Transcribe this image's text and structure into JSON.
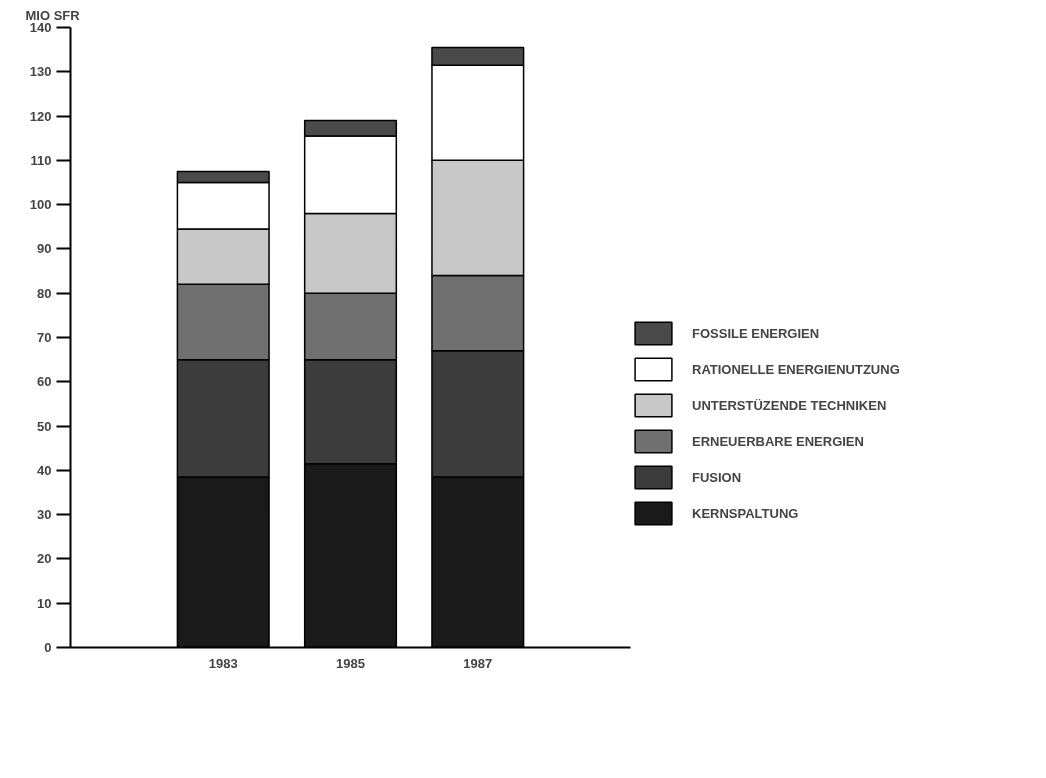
{
  "chart_data": {
    "type": "bar",
    "stacked": true,
    "ylabel": "MIO SFR",
    "categories": [
      "1983",
      "1985",
      "1987"
    ],
    "series": [
      {
        "name": "KERNSPALTUNG",
        "color": "#1a1a1a",
        "values": [
          38.5,
          41.5,
          38.5
        ]
      },
      {
        "name": "FUSION",
        "color": "#3c3c3c",
        "values": [
          26.5,
          23.5,
          28.5
        ]
      },
      {
        "name": "ERNEUERBARE ENERGIEN",
        "color": "#707070",
        "values": [
          17,
          15,
          17
        ]
      },
      {
        "name": "UNTERSTÜZENDE TECHNIKEN",
        "color": "#c8c8c8",
        "values": [
          12.5,
          18,
          26
        ]
      },
      {
        "name": "RATIONELLE ENERGIENUTZUNG",
        "color": "#ffffff",
        "values": [
          10.5,
          17.5,
          21.5
        ]
      },
      {
        "name": "FOSSILE ENERGIEN",
        "color": "#4a4a4a",
        "values": [
          2.5,
          3.5,
          4
        ]
      }
    ],
    "ylim": [
      0,
      140
    ],
    "yticks": [
      0,
      10,
      20,
      30,
      40,
      50,
      60,
      70,
      80,
      90,
      100,
      110,
      120,
      130,
      140
    ],
    "grid": false,
    "legend": "right"
  }
}
